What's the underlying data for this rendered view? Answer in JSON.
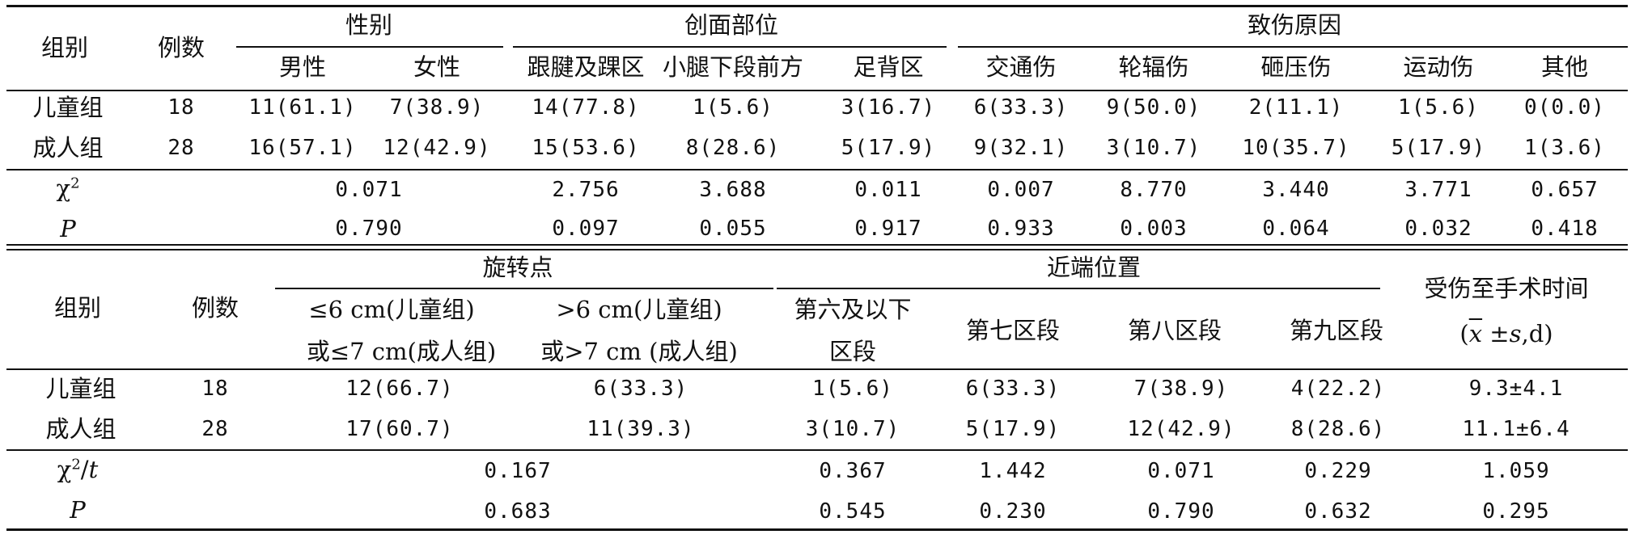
{
  "table1": {
    "header": {
      "group": "组别",
      "count": "例数",
      "sex": "性别",
      "sex_cols": [
        "男性",
        "女性"
      ],
      "wound": "创面部位",
      "wound_cols": [
        "跟腱及踝区",
        "小腿下段前方",
        "足背区"
      ],
      "cause": "致伤原因",
      "cause_cols": [
        "交通伤",
        "轮辐伤",
        "砸压伤",
        "运动伤",
        "其他"
      ]
    },
    "rows": [
      {
        "group": "儿童组",
        "n": "18",
        "cells": [
          "11(61.1)",
          "7(38.9)",
          "14(77.8)",
          "1(5.6)",
          "3(16.7)",
          "6(33.3)",
          "9(50.0)",
          "2(11.1)",
          "1(5.6)",
          "0(0.0)"
        ]
      },
      {
        "group": "成人组",
        "n": "28",
        "cells": [
          "16(57.1)",
          "12(42.9)",
          "15(53.6)",
          "8(28.6)",
          "5(17.9)",
          "9(32.1)",
          "3(10.7)",
          "10(35.7)",
          "5(17.9)",
          "1(3.6)"
        ]
      }
    ],
    "chi_label": "χ",
    "chi_sup": "2",
    "chi": [
      "0.071",
      "2.756",
      "3.688",
      "0.011",
      "0.007",
      "8.770",
      "3.440",
      "3.771",
      "0.657"
    ],
    "p_label": "P",
    "p": [
      "0.790",
      "0.097",
      "0.055",
      "0.917",
      "0.933",
      "0.003",
      "0.064",
      "0.032",
      "0.418"
    ]
  },
  "table2": {
    "header": {
      "group": "组别",
      "count": "例数",
      "rot": "旋转点",
      "rot1_l1": "≤6 cm(儿童组)",
      "rot1_l2": "或≤7 cm(成人组)",
      "rot2_l1": ">6 cm(儿童组)",
      "rot2_l2": "或>7 cm (成人组)",
      "prox": "近端位置",
      "prox1_l1": "第六及以下",
      "prox1_l2": "区段",
      "prox2": "第七区段",
      "prox3": "第八区段",
      "prox4": "第九区段",
      "time_l1": "受伤至手术时间",
      "time_open": "(",
      "time_xbar": "x",
      "time_pm": " ±",
      "time_s": "s",
      "time_tail": ",d)"
    },
    "rows": [
      {
        "group": "儿童组",
        "n": "18",
        "cells": [
          "12(66.7)",
          "6(33.3)",
          "1(5.6)",
          "6(33.3)",
          "7(38.9)",
          "4(22.2)",
          "9.3±4.1"
        ]
      },
      {
        "group": "成人组",
        "n": "28",
        "cells": [
          "17(60.7)",
          "11(39.3)",
          "3(10.7)",
          "5(17.9)",
          "12(42.9)",
          "8(28.6)",
          "11.1±6.4"
        ]
      }
    ],
    "chi_label": "χ",
    "chi_sup": "2",
    "chi_slash": "/",
    "chi_t": "t",
    "chi": [
      "0.167",
      "0.367",
      "1.442",
      "0.071",
      "0.229",
      "1.059"
    ],
    "p_label": "P",
    "p": [
      "0.683",
      "0.545",
      "0.230",
      "0.790",
      "0.632",
      "0.295"
    ]
  }
}
